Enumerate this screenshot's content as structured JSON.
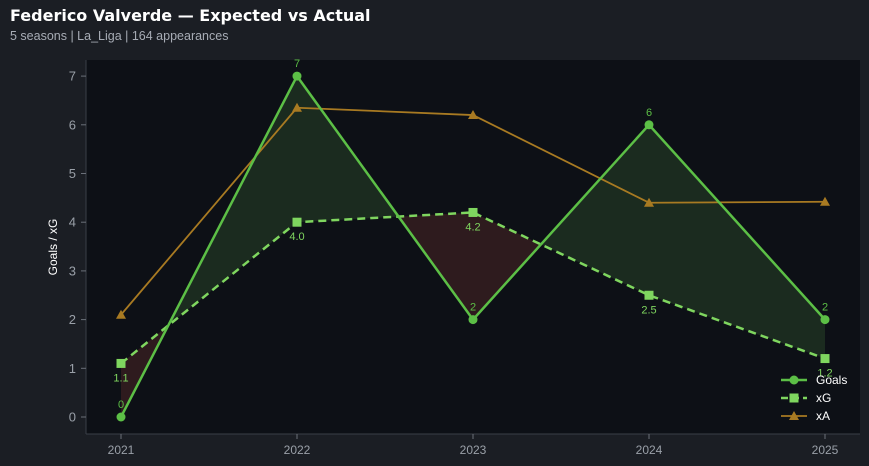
{
  "header": {
    "title": "Federico Valverde — Expected vs Actual",
    "subtitle": "5 seasons | La_Liga | 164 appearances"
  },
  "colors": {
    "goals": "#5cbf46",
    "xg": "#7fd65f",
    "xa": "#a87a22",
    "fill_over": "#1b2b1f",
    "fill_under": "#2e1b1e",
    "plot_bg": "#0d1016",
    "page_bg": "#1b1e24"
  },
  "chart_data": {
    "type": "line",
    "title": "Federico Valverde — Expected vs Actual",
    "subtitle": "5 seasons | La_Liga | 164 appearances",
    "xlabel": "",
    "ylabel": "Goals / xG",
    "categories": [
      "2021",
      "2022",
      "2023",
      "2024",
      "2025"
    ],
    "yticks": [
      "0",
      "1",
      "2",
      "3",
      "4",
      "5",
      "6",
      "7"
    ],
    "ylim": [
      -0.35,
      7.35
    ],
    "grid": false,
    "legend_position": "bottom-right",
    "series": [
      {
        "name": "Goals",
        "values": [
          0,
          7,
          2,
          6,
          2
        ],
        "labels": [
          "0",
          "7",
          "2",
          "6",
          "2"
        ],
        "marker": "circle",
        "style": "solid"
      },
      {
        "name": "xG",
        "values": [
          1.1,
          4.0,
          4.2,
          2.5,
          1.2
        ],
        "labels": [
          "1.1",
          "4.0",
          "4.2",
          "2.5",
          "1.2"
        ],
        "marker": "square",
        "style": "dashed"
      },
      {
        "name": "xA",
        "values": [
          2.1,
          6.35,
          6.2,
          4.4,
          4.42
        ],
        "marker": "triangle",
        "style": "solid"
      }
    ]
  }
}
